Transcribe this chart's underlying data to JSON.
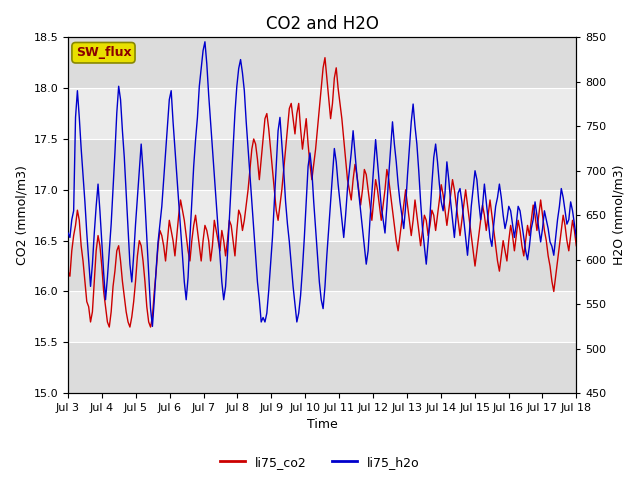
{
  "title": "CO2 and H2O",
  "xlabel": "Time",
  "ylabel_left": "CO2 (mmol/m3)",
  "ylabel_right": "H2O (mmol/m3)",
  "ylim_left": [
    15.0,
    18.5
  ],
  "ylim_right": [
    450,
    850
  ],
  "xtick_labels": [
    "Jul 3",
    "Jul 4",
    "Jul 5",
    "Jul 6",
    "Jul 7",
    "Jul 8",
    "Jul 9",
    "Jul 10",
    "Jul 11",
    "Jul 12",
    "Jul 13",
    "Jul 14",
    "Jul 15",
    "Jul 16",
    "Jul 17",
    "Jul 18"
  ],
  "color_co2": "#cc0000",
  "color_h2o": "#0000cc",
  "legend_label_co2": "li75_co2",
  "legend_label_h2o": "li75_h2o",
  "annotation_text": "SW_flux",
  "annotation_bg": "#e8e000",
  "annotation_border": "#888800",
  "title_fontsize": 12,
  "axis_fontsize": 9,
  "tick_fontsize": 8,
  "legend_fontsize": 9,
  "linewidth": 1.0,
  "band_colors": [
    "#dcdcdc",
    "#ebebeb"
  ],
  "co2_data": [
    16.2,
    16.15,
    16.4,
    16.55,
    16.65,
    16.8,
    16.7,
    16.45,
    16.3,
    16.1,
    15.9,
    15.85,
    15.7,
    15.8,
    16.1,
    16.4,
    16.55,
    16.45,
    16.25,
    16.0,
    15.85,
    15.7,
    15.65,
    15.8,
    16.05,
    16.2,
    16.4,
    16.45,
    16.3,
    16.1,
    15.95,
    15.8,
    15.7,
    15.65,
    15.75,
    15.9,
    16.1,
    16.35,
    16.5,
    16.45,
    16.3,
    16.1,
    15.85,
    15.7,
    15.65,
    15.75,
    16.0,
    16.2,
    16.45,
    16.6,
    16.55,
    16.45,
    16.3,
    16.5,
    16.7,
    16.6,
    16.5,
    16.35,
    16.55,
    16.75,
    16.9,
    16.8,
    16.7,
    16.55,
    16.4,
    16.3,
    16.5,
    16.65,
    16.75,
    16.6,
    16.45,
    16.3,
    16.5,
    16.65,
    16.6,
    16.5,
    16.3,
    16.45,
    16.7,
    16.6,
    16.5,
    16.4,
    16.6,
    16.5,
    16.35,
    16.5,
    16.7,
    16.65,
    16.5,
    16.35,
    16.6,
    16.8,
    16.75,
    16.6,
    16.7,
    16.85,
    17.0,
    17.2,
    17.4,
    17.5,
    17.45,
    17.3,
    17.1,
    17.3,
    17.5,
    17.7,
    17.75,
    17.6,
    17.4,
    17.2,
    17.0,
    16.8,
    16.7,
    16.85,
    17.0,
    17.2,
    17.4,
    17.6,
    17.8,
    17.85,
    17.7,
    17.55,
    17.75,
    17.85,
    17.6,
    17.4,
    17.55,
    17.7,
    17.45,
    17.25,
    17.1,
    17.25,
    17.4,
    17.6,
    17.8,
    18.0,
    18.2,
    18.3,
    18.1,
    17.9,
    17.7,
    17.85,
    18.1,
    18.2,
    18.0,
    17.85,
    17.7,
    17.5,
    17.3,
    17.1,
    17.0,
    16.9,
    17.1,
    17.25,
    17.15,
    17.0,
    16.85,
    17.0,
    17.2,
    17.15,
    17.0,
    16.85,
    16.7,
    16.9,
    17.1,
    17.0,
    16.85,
    16.7,
    16.85,
    17.0,
    17.2,
    17.1,
    16.95,
    16.8,
    16.65,
    16.5,
    16.4,
    16.55,
    16.7,
    16.85,
    17.0,
    16.85,
    16.7,
    16.55,
    16.7,
    16.9,
    16.75,
    16.6,
    16.45,
    16.6,
    16.75,
    16.7,
    16.55,
    16.65,
    16.8,
    16.75,
    16.6,
    16.75,
    16.9,
    17.05,
    16.95,
    16.8,
    16.65,
    16.8,
    16.95,
    17.1,
    17.0,
    16.85,
    16.7,
    16.55,
    16.7,
    16.85,
    17.0,
    16.85,
    16.7,
    16.55,
    16.4,
    16.25,
    16.4,
    16.55,
    16.7,
    16.85,
    16.75,
    16.6,
    16.75,
    16.9,
    16.75,
    16.6,
    16.45,
    16.3,
    16.2,
    16.35,
    16.5,
    16.4,
    16.3,
    16.5,
    16.65,
    16.55,
    16.4,
    16.55,
    16.7,
    16.6,
    16.45,
    16.35,
    16.5,
    16.65,
    16.55,
    16.7,
    16.85,
    16.75,
    16.6,
    16.75,
    16.9,
    16.75,
    16.6,
    16.5,
    16.35,
    16.25,
    16.1,
    16.0,
    16.15,
    16.3,
    16.45,
    16.6,
    16.75,
    16.65,
    16.5,
    16.4,
    16.55,
    16.7,
    16.6,
    16.45,
    16.35,
    16.5,
    16.65,
    16.55,
    16.65,
    16.8,
    16.7,
    16.6,
    16.5,
    16.65,
    16.8,
    16.7,
    16.55,
    16.45
  ],
  "h2o_data": [
    630,
    625,
    645,
    655,
    760,
    790,
    760,
    725,
    695,
    665,
    630,
    600,
    570,
    595,
    630,
    660,
    685,
    655,
    620,
    585,
    555,
    580,
    610,
    640,
    680,
    720,
    765,
    795,
    780,
    745,
    715,
    675,
    635,
    595,
    575,
    605,
    640,
    670,
    700,
    730,
    700,
    665,
    625,
    585,
    545,
    525,
    555,
    590,
    620,
    640,
    660,
    690,
    720,
    750,
    780,
    790,
    755,
    725,
    695,
    665,
    635,
    605,
    575,
    555,
    580,
    625,
    665,
    705,
    735,
    760,
    795,
    815,
    835,
    845,
    820,
    785,
    755,
    725,
    695,
    665,
    635,
    605,
    575,
    555,
    570,
    605,
    645,
    685,
    725,
    765,
    795,
    815,
    825,
    810,
    790,
    755,
    725,
    695,
    665,
    635,
    605,
    575,
    555,
    530,
    535,
    530,
    540,
    565,
    595,
    625,
    665,
    705,
    745,
    760,
    730,
    700,
    665,
    640,
    620,
    595,
    570,
    550,
    530,
    540,
    560,
    590,
    625,
    665,
    705,
    720,
    700,
    665,
    635,
    605,
    575,
    555,
    545,
    570,
    605,
    635,
    665,
    695,
    725,
    710,
    685,
    665,
    645,
    625,
    650,
    680,
    700,
    720,
    745,
    720,
    695,
    675,
    655,
    635,
    615,
    595,
    610,
    645,
    675,
    705,
    735,
    710,
    685,
    660,
    645,
    630,
    660,
    695,
    725,
    755,
    730,
    710,
    685,
    665,
    650,
    635,
    660,
    695,
    725,
    755,
    775,
    750,
    730,
    700,
    665,
    635,
    615,
    595,
    620,
    650,
    685,
    715,
    730,
    710,
    685,
    665,
    655,
    675,
    710,
    690,
    665,
    645,
    625,
    650,
    675,
    680,
    665,
    645,
    625,
    605,
    630,
    660,
    680,
    700,
    690,
    665,
    645,
    660,
    685,
    665,
    645,
    625,
    615,
    640,
    660,
    670,
    685,
    670,
    650,
    635,
    645,
    660,
    655,
    640,
    625,
    640,
    660,
    655,
    640,
    625,
    610,
    600,
    615,
    635,
    645,
    665,
    650,
    635,
    620,
    635,
    655,
    645,
    635,
    620,
    615,
    605,
    625,
    645,
    660,
    680,
    670,
    655,
    640,
    645,
    665,
    655,
    640,
    625
  ]
}
